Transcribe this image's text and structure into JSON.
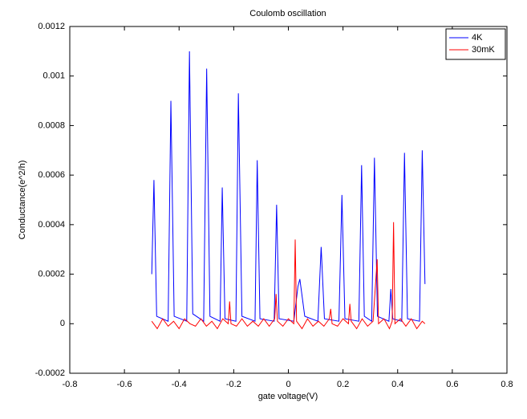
{
  "chart_data": {
    "type": "line",
    "title": "Coulomb oscillation",
    "x_label": "gate voltage(V)",
    "y_label": "Conductance(e^2/h)",
    "xlim": [
      -0.8,
      0.8
    ],
    "xticks": [
      -0.8,
      -0.6,
      -0.4,
      -0.2,
      0,
      0.2,
      0.4,
      0.6,
      0.8
    ],
    "ylim": [
      -0.0002,
      0.0012
    ],
    "yticks": [
      -0.0002,
      0,
      0.0002,
      0.0004,
      0.0006,
      0.0008,
      0.001,
      0.0012
    ],
    "legend": "top-right",
    "series": [
      {
        "name": "4K",
        "color": "#0000ff",
        "x": [
          -0.5,
          -0.492,
          -0.482,
          -0.44,
          -0.43,
          -0.418,
          -0.372,
          -0.362,
          -0.35,
          -0.31,
          -0.299,
          -0.287,
          -0.25,
          -0.242,
          -0.232,
          -0.192,
          -0.183,
          -0.17,
          -0.122,
          -0.114,
          -0.104,
          -0.052,
          -0.043,
          -0.034,
          0.02,
          0.035,
          0.042,
          0.06,
          0.108,
          0.12,
          0.132,
          0.185,
          0.196,
          0.207,
          0.258,
          0.268,
          0.278,
          0.305,
          0.315,
          0.326,
          0.368,
          0.375,
          0.382,
          0.415,
          0.425,
          0.436,
          0.48,
          0.49,
          0.5
        ],
        "values": [
          0.0002,
          0.00058,
          3e-05,
          1e-05,
          0.0009,
          3e-05,
          1e-05,
          0.0011,
          4e-05,
          1e-05,
          0.00103,
          3e-05,
          1e-05,
          0.00055,
          2e-05,
          1e-05,
          0.00093,
          3e-05,
          1e-05,
          0.00066,
          2e-05,
          1e-05,
          0.00048,
          2e-05,
          1e-05,
          0.00015,
          0.00018,
          3e-05,
          1e-05,
          0.00031,
          2e-05,
          1e-05,
          0.00052,
          2e-05,
          1e-05,
          0.00064,
          3e-05,
          1e-05,
          0.00067,
          3e-05,
          1e-05,
          0.00014,
          2e-05,
          1e-05,
          0.00069,
          2e-05,
          1e-05,
          0.0007,
          0.00016
        ]
      },
      {
        "name": "30mK",
        "color": "#ff0000",
        "x": [
          -0.5,
          -0.48,
          -0.46,
          -0.44,
          -0.42,
          -0.4,
          -0.38,
          -0.36,
          -0.34,
          -0.32,
          -0.3,
          -0.28,
          -0.26,
          -0.24,
          -0.22,
          -0.215,
          -0.21,
          -0.19,
          -0.17,
          -0.15,
          -0.13,
          -0.11,
          -0.09,
          -0.07,
          -0.05,
          -0.045,
          -0.04,
          -0.02,
          0,
          0.02,
          0.025,
          0.03,
          0.05,
          0.07,
          0.09,
          0.11,
          0.13,
          0.15,
          0.155,
          0.16,
          0.18,
          0.2,
          0.22,
          0.225,
          0.23,
          0.25,
          0.27,
          0.29,
          0.31,
          0.325,
          0.33,
          0.35,
          0.37,
          0.38,
          0.385,
          0.39,
          0.41,
          0.43,
          0.45,
          0.47,
          0.49,
          0.5
        ],
        "values": [
          1e-05,
          -2e-05,
          2e-05,
          -1e-05,
          1e-05,
          -2e-05,
          2e-05,
          0,
          -1e-05,
          2e-05,
          -1e-05,
          1e-05,
          -2e-05,
          2e-05,
          0,
          9e-05,
          0,
          -1e-05,
          2e-05,
          -1e-05,
          1e-05,
          -1e-05,
          2e-05,
          -1e-05,
          2e-05,
          0.00012,
          1e-05,
          -1e-05,
          2e-05,
          0,
          0.00034,
          1e-05,
          -2e-05,
          2e-05,
          -1e-05,
          1e-05,
          -1e-05,
          2e-05,
          6e-05,
          0,
          -1e-05,
          2e-05,
          0,
          8e-05,
          1e-05,
          -2e-05,
          2e-05,
          -1e-05,
          1e-05,
          0.00026,
          0,
          2e-05,
          -2e-05,
          1e-05,
          0.00041,
          0,
          2e-05,
          -1e-05,
          2e-05,
          -2e-05,
          1e-05,
          0
        ]
      }
    ]
  }
}
